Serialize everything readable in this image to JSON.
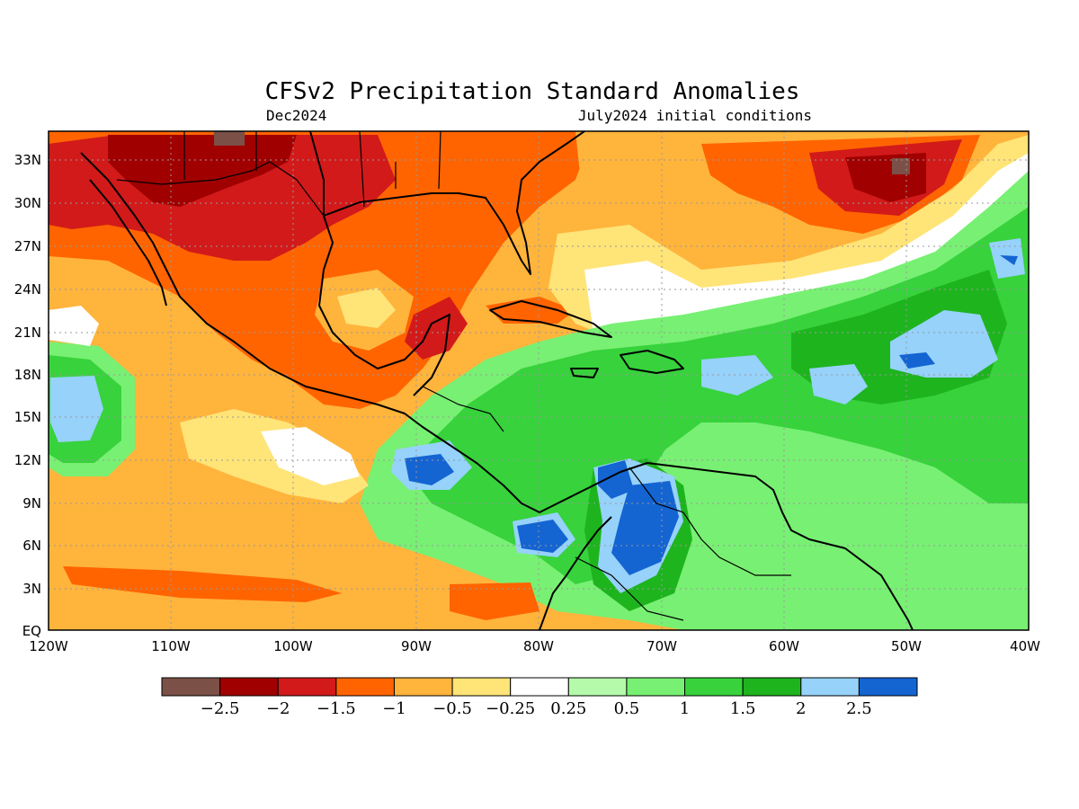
{
  "title": "CFSv2 Precipitation Standard Anomalies",
  "subtitle_left": "Dec2024",
  "subtitle_right": "July2024 initial conditions",
  "lat_labels": [
    "33N",
    "30N",
    "27N",
    "24N",
    "21N",
    "18N",
    "15N",
    "12N",
    "9N",
    "6N",
    "3N",
    "EQ"
  ],
  "lon_labels": [
    "120W",
    "110W",
    "100W",
    "90W",
    "80W",
    "70W",
    "60W",
    "50W",
    "40W"
  ],
  "colorbar": {
    "colors": [
      "#7b5046",
      "#a00000",
      "#d21a1a",
      "#ff6400",
      "#ffb43c",
      "#ffe478",
      "#ffffff",
      "#b4faaa",
      "#78f073",
      "#37d23c",
      "#1eb41e",
      "#96d2fa",
      "#1464d2"
    ],
    "labels": [
      "−2.5",
      "−2",
      "−1.5",
      "−1",
      "−0.5",
      "−0.25",
      "0.25",
      "0.5",
      "1",
      "1.5",
      "2",
      "2.5"
    ]
  }
}
